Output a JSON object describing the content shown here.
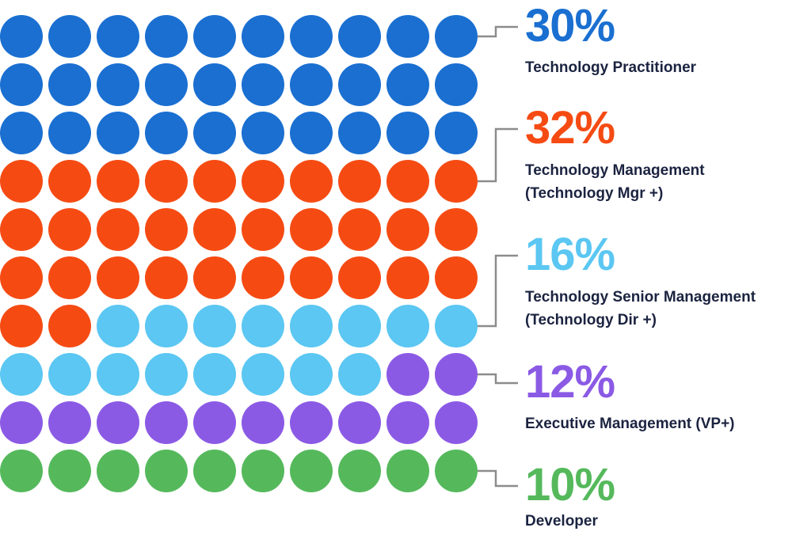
{
  "chart_data": {
    "type": "waffle",
    "grid": {
      "rows": 10,
      "columns": 10
    },
    "categories": [
      {
        "name": "Technology Practitioner",
        "percent_label": "30%",
        "value": 30,
        "color": "#1a6fd1"
      },
      {
        "name": "Technology Management\n(Technology Mgr +)",
        "percent_label": "32%",
        "value": 32,
        "color": "#f54b13"
      },
      {
        "name": "Technology Senior Management\n(Technology Dir +)",
        "percent_label": "16%",
        "value": 16,
        "color": "#5bc7f2"
      },
      {
        "name": "Executive Management (VP+)",
        "percent_label": "12%",
        "value": 12,
        "color": "#8b5ae5"
      },
      {
        "name": "Developer",
        "percent_label": "10%",
        "value": 10,
        "color": "#55b95c"
      }
    ],
    "connector_color": "#8c8c8c"
  }
}
